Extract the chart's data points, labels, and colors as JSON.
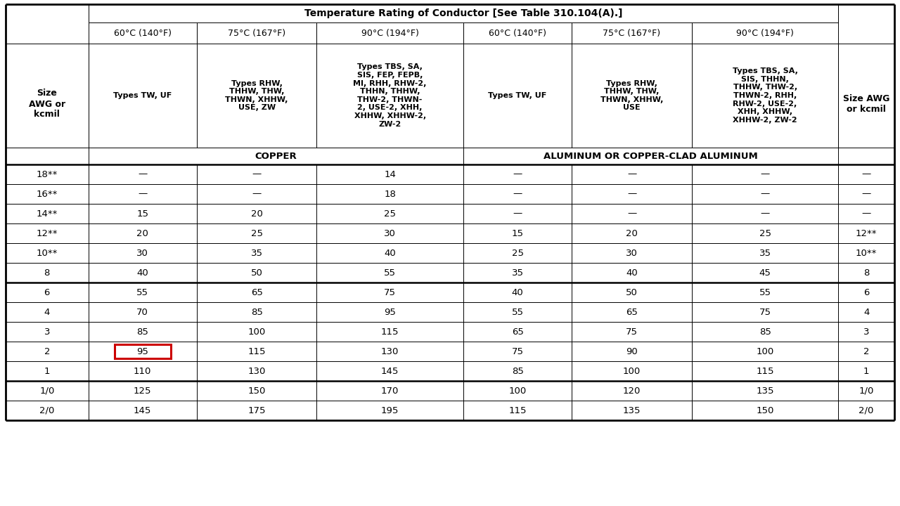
{
  "title": "Temperature Rating of Conductor [See Table 310.104(A).]",
  "col_headers_temp": [
    "60°C (140°F)",
    "75°C (167°F)",
    "90°C (194°F)",
    "60°C (140°F)",
    "75°C (167°F)",
    "90°C (194°F)"
  ],
  "col_types": [
    "Types TW, UF",
    "Types RHW,\nTHHW, THW,\nTHWN, XHHW,\nUSE, ZW",
    "Types TBS, SA,\nSIS, FEP, FEPB,\nMI, RHH, RHW-2,\nTHHN, THHW,\nTHW-2, THWN-\n2, USE-2, XHH,\nXHHW, XHHW-2,\nZW-2",
    "Types TW, UF",
    "Types RHW,\nTHHW, THW,\nTHWN, XHHW,\nUSE",
    "Types TBS, SA,\nSIS, THHN,\nTHHW, THW-2,\nTHWN-2, RHH,\nRHW-2, USE-2,\nXHH, XHHW,\nXHHW-2, ZW-2"
  ],
  "material_copper": "COPPER",
  "material_alum": "ALUMINUM OR COPPER-CLAD ALUMINUM",
  "size_header_left": "Size\nAWG or\nkcmil",
  "size_header_right": "Size AWG\nor kcmil",
  "rows": [
    {
      "size": "18**",
      "cu60": "—",
      "cu75": "—",
      "cu90": "14",
      "al60": "—",
      "al75": "—",
      "al90": "—",
      "size_r": "—"
    },
    {
      "size": "16**",
      "cu60": "—",
      "cu75": "—",
      "cu90": "18",
      "al60": "—",
      "al75": "—",
      "al90": "—",
      "size_r": "—"
    },
    {
      "size": "14**",
      "cu60": "15",
      "cu75": "20",
      "cu90": "25",
      "al60": "—",
      "al75": "—",
      "al90": "—",
      "size_r": "—"
    },
    {
      "size": "12**",
      "cu60": "20",
      "cu75": "25",
      "cu90": "30",
      "al60": "15",
      "al75": "20",
      "al90": "25",
      "size_r": "12**"
    },
    {
      "size": "10**",
      "cu60": "30",
      "cu75": "35",
      "cu90": "40",
      "al60": "25",
      "al75": "30",
      "al90": "35",
      "size_r": "10**"
    },
    {
      "size": "8",
      "cu60": "40",
      "cu75": "50",
      "cu90": "55",
      "al60": "35",
      "al75": "40",
      "al90": "45",
      "size_r": "8"
    },
    {
      "size": "6",
      "cu60": "55",
      "cu75": "65",
      "cu90": "75",
      "al60": "40",
      "al75": "50",
      "al90": "55",
      "size_r": "6"
    },
    {
      "size": "4",
      "cu60": "70",
      "cu75": "85",
      "cu90": "95",
      "al60": "55",
      "al75": "65",
      "al90": "75",
      "size_r": "4"
    },
    {
      "size": "3",
      "cu60": "85",
      "cu75": "100",
      "cu90": "115",
      "al60": "65",
      "al75": "75",
      "al90": "85",
      "size_r": "3"
    },
    {
      "size": "2",
      "cu60": "95",
      "cu75": "115",
      "cu90": "130",
      "al60": "75",
      "al75": "90",
      "al90": "100",
      "size_r": "2",
      "highlight_cu60": true
    },
    {
      "size": "1",
      "cu60": "110",
      "cu75": "130",
      "cu90": "145",
      "al60": "85",
      "al75": "100",
      "al90": "115",
      "size_r": "1"
    },
    {
      "size": "1/0",
      "cu60": "125",
      "cu75": "150",
      "cu90": "170",
      "al60": "100",
      "al75": "120",
      "al90": "135",
      "size_r": "1/0"
    },
    {
      "size": "2/0",
      "cu60": "145",
      "cu75": "175",
      "cu90": "195",
      "al60": "115",
      "al75": "135",
      "al90": "150",
      "size_r": "2/0"
    }
  ],
  "thick_sep_after_rows": [
    5,
    10
  ],
  "bg_color": "#ffffff",
  "highlight_color": "#cc0000",
  "lw_thick": 1.8,
  "lw_thin": 0.7,
  "lw_outer": 2.0,
  "font_size_title": 10.0,
  "font_size_temp": 9.0,
  "font_size_type": 8.0,
  "font_size_mat": 9.5,
  "font_size_data": 9.5,
  "font_size_size": 9.0
}
